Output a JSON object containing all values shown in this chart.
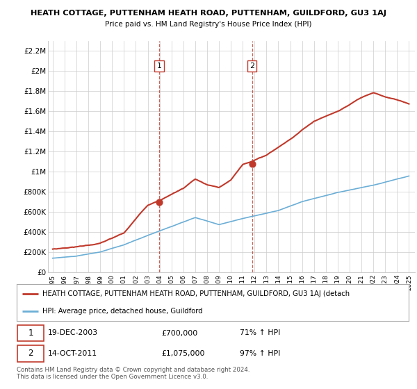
{
  "title": "HEATH COTTAGE, PUTTENHAM HEATH ROAD, PUTTENHAM, GUILDFORD, GU3 1AJ",
  "subtitle": "Price paid vs. HM Land Registry's House Price Index (HPI)",
  "ylim": [
    0,
    2300000
  ],
  "yticks": [
    0,
    200000,
    400000,
    600000,
    800000,
    1000000,
    1200000,
    1400000,
    1600000,
    1800000,
    2000000,
    2200000
  ],
  "ytick_labels": [
    "£0",
    "£200K",
    "£400K",
    "£600K",
    "£800K",
    "£1M",
    "£1.2M",
    "£1.4M",
    "£1.6M",
    "£1.8M",
    "£2M",
    "£2.2M"
  ],
  "sale1_year": 2003.96,
  "sale1_price": 700000,
  "sale2_year": 2011.79,
  "sale2_price": 1075000,
  "sale1_label": "1",
  "sale2_label": "2",
  "hpi_color": "#6baed6",
  "price_color": "#c0392b",
  "vline_color": "#c0392b",
  "legend_line1": "HEATH COTTAGE, PUTTENHAM HEATH ROAD, PUTTENHAM, GUILDFORD, GU3 1AJ (detach",
  "legend_line2": "HPI: Average price, detached house, Guildford",
  "annotation1_date": "19-DEC-2003",
  "annotation1_price": "£700,000",
  "annotation1_hpi": "71% ↑ HPI",
  "annotation2_date": "14-OCT-2011",
  "annotation2_price": "£1,075,000",
  "annotation2_hpi": "97% ↑ HPI",
  "footer": "Contains HM Land Registry data © Crown copyright and database right 2024.\nThis data is licensed under the Open Government Licence v3.0.",
  "background_color": "#ffffff",
  "grid_color": "#cccccc"
}
